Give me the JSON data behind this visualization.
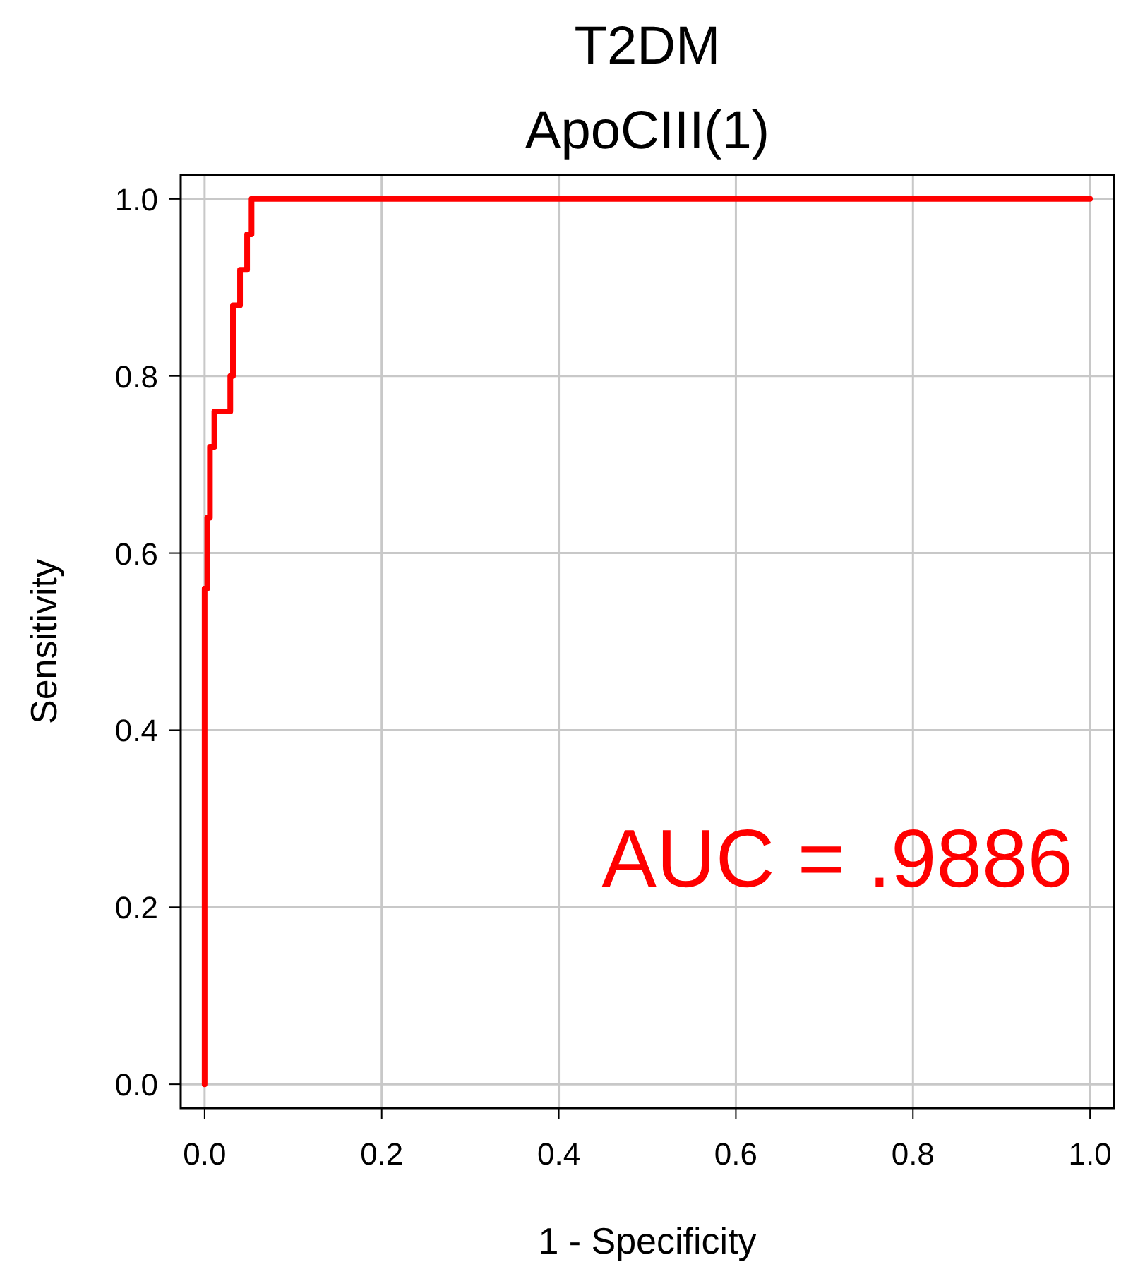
{
  "chart_data": {
    "type": "line",
    "title": "T2DM",
    "subtitle": "ApoCIII(1)",
    "xlabel": "1 - Specificity",
    "ylabel": "Sensitivity",
    "xlim": [
      -0.027,
      1.027
    ],
    "ylim": [
      -0.027,
      1.027
    ],
    "xticks": [
      {
        "value": 0,
        "label": "0.0"
      },
      0.2,
      0.4,
      0.6,
      0.8,
      {
        "value": 1,
        "label": "1.0"
      }
    ],
    "yticks": [
      {
        "value": 0,
        "label": "0.0"
      },
      0.2,
      0.4,
      0.6,
      0.8,
      {
        "value": 1,
        "label": "1.0"
      }
    ],
    "grid": true,
    "annotations": [
      "AUC = .9886"
    ],
    "series": [
      {
        "color": "#ff0000",
        "x": [
          0,
          0,
          0.003,
          0.003,
          0.006,
          0.006,
          0.011,
          0.011,
          0.029,
          0.029,
          0.032,
          0.032,
          0.04,
          0.04,
          0.048,
          0.048,
          0.053,
          0.053,
          1
        ],
        "values": [
          0,
          0.56,
          0.56,
          0.64,
          0.64,
          0.72,
          0.72,
          0.76,
          0.76,
          0.8,
          0.8,
          0.88,
          0.88,
          0.92,
          0.92,
          0.96,
          0.96,
          1,
          1
        ]
      }
    ]
  }
}
